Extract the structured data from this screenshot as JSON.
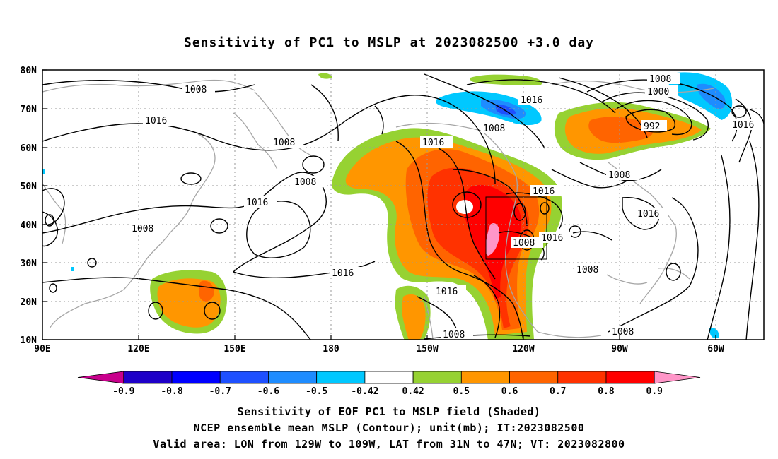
{
  "title": "Sensitivity of PC1 to MSLP at 2023082500 +3.0 day",
  "captions": [
    "Sensitivity of EOF PC1 to MSLP field (Shaded)",
    "NCEP ensemble mean MSLP (Contour); unit(mb); IT:2023082500",
    "Valid area: LON from 129W to 109W, LAT from 31N to 47N; VT: 2023082800"
  ],
  "lat_labels": [
    "80N",
    "70N",
    "60N",
    "50N",
    "40N",
    "30N",
    "20N",
    "10N"
  ],
  "lon_labels": [
    "90E",
    "120E",
    "150E",
    "180",
    "150W",
    "120W",
    "90W",
    "60W"
  ],
  "contour_labels": [
    "1008",
    "1016",
    "1008",
    "1016",
    "1008",
    "1016",
    "1008",
    "1016",
    "1016",
    "1008",
    "1008",
    "1000",
    "992",
    "1016",
    "1016",
    "1008",
    "1016",
    "1008",
    "1016",
    "1016",
    "1008",
    "1008",
    "1008",
    "1008",
    "1016"
  ],
  "colorbar": {
    "labels": [
      "-0.9",
      "-0.8",
      "-0.7",
      "-0.6",
      "-0.5",
      "-0.42",
      "0.42",
      "0.5",
      "0.6",
      "0.7",
      "0.8",
      "0.9"
    ],
    "colors": [
      "#c8008c",
      "#1e00c8",
      "#0000ff",
      "#1e50ff",
      "#1e8cff",
      "#00c8ff",
      "#ffffff",
      "#96d232",
      "#ff9600",
      "#ff6400",
      "#ff3200",
      "#ff0000",
      "#ff96c8"
    ]
  },
  "chart_data": {
    "type": "map",
    "lat_range": [
      10,
      80
    ],
    "lon_range": [
      90,
      315
    ],
    "valid_area": {
      "lon": [
        -129,
        -109
      ],
      "lat": [
        31,
        47
      ]
    }
  }
}
